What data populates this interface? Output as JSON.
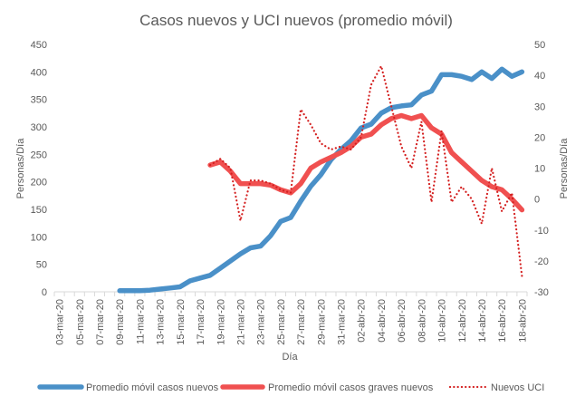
{
  "chart_data": {
    "type": "line",
    "title": "Casos nuevos y UCI nuevos (promedio móvil)",
    "xlabel": "Día",
    "ylabel_left": "Personas/Día",
    "ylabel_right": "Personas/Día",
    "ylim_left": [
      0,
      450
    ],
    "ylim_right": [
      -30,
      50
    ],
    "yticks_left": [
      0,
      50,
      100,
      150,
      200,
      250,
      300,
      350,
      400,
      450
    ],
    "yticks_right": [
      -30,
      -20,
      -10,
      0,
      10,
      20,
      30,
      40,
      50
    ],
    "grid": false,
    "legend_position": "bottom",
    "x_tick_labels": [
      "03-mar-20",
      "05-mar-20",
      "07-mar-20",
      "09-mar-20",
      "11-mar-20",
      "13-mar-20",
      "15-mar-20",
      "17-mar-20",
      "19-mar-20",
      "21-mar-20",
      "23-mar-20",
      "25-mar-20",
      "27-mar-20",
      "29-mar-20",
      "31-mar-20",
      "02-abr-20",
      "04-abr-20",
      "06-abr-20",
      "08-abr-20",
      "10-abr-20",
      "12-abr-20",
      "14-abr-20",
      "16-abr-20",
      "18-abr-20"
    ],
    "x_days": [
      "03-mar",
      "04-mar",
      "05-mar",
      "06-mar",
      "07-mar",
      "08-mar",
      "09-mar",
      "10-mar",
      "11-mar",
      "12-mar",
      "13-mar",
      "14-mar",
      "15-mar",
      "16-mar",
      "17-mar",
      "18-mar",
      "19-mar",
      "20-mar",
      "21-mar",
      "22-mar",
      "23-mar",
      "24-mar",
      "25-mar",
      "26-mar",
      "27-mar",
      "28-mar",
      "29-mar",
      "30-mar",
      "31-mar",
      "01-abr",
      "02-abr",
      "03-abr",
      "04-abr",
      "05-abr",
      "06-abr",
      "07-abr",
      "08-abr",
      "09-abr",
      "10-abr",
      "11-abr",
      "12-abr",
      "13-abr",
      "14-abr",
      "15-abr",
      "16-abr",
      "17-abr",
      "18-abr"
    ],
    "series": [
      {
        "name": "Promedio móvil casos nuevos",
        "axis": "left",
        "color": "#4a90c8",
        "style": "solid",
        "values": [
          null,
          null,
          null,
          null,
          null,
          null,
          2,
          2,
          2,
          3,
          5,
          7,
          9,
          20,
          25,
          30,
          43,
          56,
          69,
          80,
          83,
          102,
          128,
          135,
          165,
          192,
          213,
          240,
          259,
          275,
          298,
          305,
          325,
          335,
          338,
          340,
          358,
          365,
          395,
          395,
          392,
          386,
          400,
          388,
          405,
          392,
          400
        ]
      },
      {
        "name": "Promedio móvil casos graves nuevos",
        "axis": "right",
        "color": "#f05050",
        "style": "solid",
        "values": [
          null,
          null,
          null,
          null,
          null,
          null,
          null,
          null,
          null,
          null,
          null,
          null,
          null,
          null,
          null,
          11,
          12,
          9,
          5,
          5,
          5,
          4.5,
          3,
          2,
          5,
          10,
          12,
          13.5,
          15,
          17,
          20,
          21,
          24,
          26,
          27,
          26,
          27,
          23,
          21,
          15,
          12,
          9,
          6,
          4,
          3,
          0,
          -3.5
        ]
      },
      {
        "name": "Nuevos UCI",
        "axis": "right",
        "color": "#d42020",
        "style": "dotted",
        "values": [
          null,
          null,
          null,
          null,
          null,
          null,
          null,
          null,
          null,
          null,
          null,
          null,
          null,
          null,
          null,
          11,
          13,
          10,
          -7,
          6,
          6,
          5,
          3,
          2,
          29,
          24,
          18,
          16,
          17,
          16,
          20,
          37,
          43,
          30,
          17,
          10,
          25,
          -1,
          22,
          -1,
          4,
          0,
          -8,
          10,
          -4,
          2,
          -25
        ]
      }
    ]
  }
}
